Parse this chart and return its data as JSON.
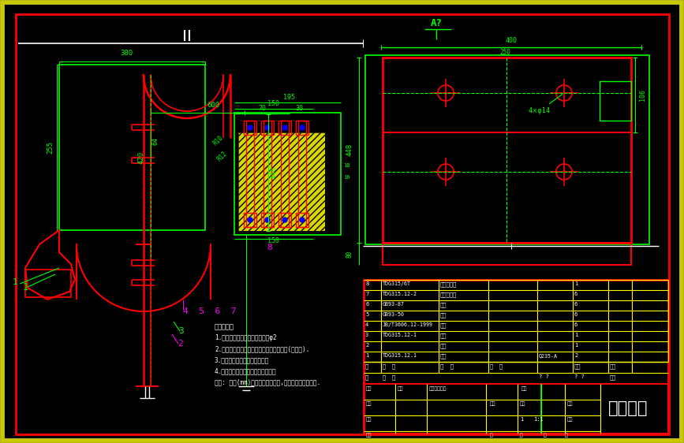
{
  "bg_outer": "#787878",
  "bg_yellow": "#c8c800",
  "bg_inner": "#000000",
  "line_red": "#ff0000",
  "line_green": "#00ff00",
  "line_white": "#ffffff",
  "line_yellow": "#ffff00",
  "line_magenta": "#ff00ff",
  "line_blue": "#0000ff",
  "title": "料斗装置",
  "tech_notes": [
    "技术要求：",
    "1.料斗宽幅，现在车间件上钻孔φ2",
    "2.安装时选取适合料斗及料斗紧固螺栓型号(矩形附).",
    "3.拖大链组装相对的占一个节距",
    "4.配合与相关链中联轴器相对门到位",
    "说明: 各部(mm)为斗提机上下端差,所以每组正入边加载."
  ]
}
